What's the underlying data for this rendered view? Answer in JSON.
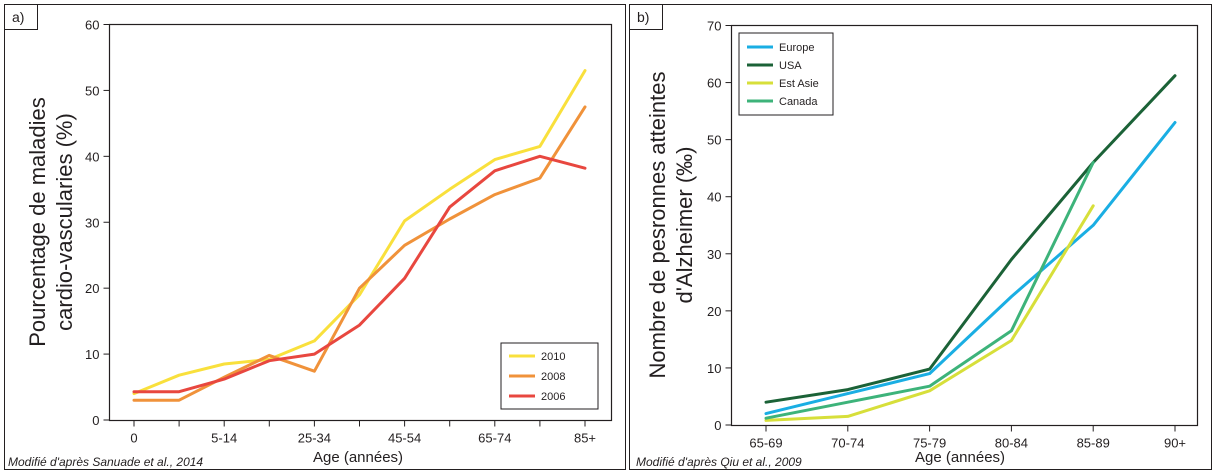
{
  "chart_data": [
    {
      "type": "line",
      "panel_label": "a)",
      "categories": [
        "0",
        "",
        "5-14",
        "",
        "25-34",
        "",
        "45-54",
        "",
        "65-74",
        "",
        "85+"
      ],
      "series": [
        {
          "name": "2010",
          "color": "#f9e03c",
          "values": [
            4.0,
            6.8,
            8.5,
            9.2,
            12.0,
            19.0,
            30.2,
            35.0,
            39.5,
            41.5,
            53.0
          ]
        },
        {
          "name": "2008",
          "color": "#f0923a",
          "values": [
            3.0,
            3.0,
            6.5,
            9.8,
            7.4,
            20.0,
            26.5,
            30.5,
            34.2,
            36.7,
            47.5
          ]
        },
        {
          "name": "2006",
          "color": "#e8473f",
          "values": [
            4.3,
            4.3,
            6.2,
            9.0,
            10.0,
            14.4,
            21.5,
            32.3,
            37.8,
            40.0,
            38.2
          ]
        }
      ],
      "ylim": [
        0,
        60
      ],
      "yticks": [
        "0",
        "10",
        "20",
        "30",
        "40",
        "50",
        "60"
      ],
      "xlabel": "Age (années)",
      "ylabel": [
        "Pourcentage de maladies",
        "cardio-vascularies (%)"
      ],
      "legend_position": "bottom-right",
      "source_note": "Modifié d'après Sanuade et al., 2014"
    },
    {
      "type": "line",
      "panel_label": "b)",
      "categories": [
        "65-69",
        "70-74",
        "75-79",
        "80-84",
        "85-89",
        "90+"
      ],
      "series": [
        {
          "name": "Europe",
          "color": "#1aaee3",
          "values": [
            2.0,
            5.5,
            9.0,
            22.5,
            35.0,
            53.0
          ]
        },
        {
          "name": "USA",
          "color": "#1b6237",
          "values": [
            4.0,
            6.2,
            9.8,
            29.0,
            46.0,
            61.2
          ]
        },
        {
          "name": "Est Asie",
          "color": "#d7df3a",
          "values": [
            0.8,
            1.5,
            6.0,
            14.8,
            38.4,
            null
          ]
        },
        {
          "name": "Canada",
          "color": "#3db37a",
          "values": [
            1.2,
            4.0,
            6.8,
            16.5,
            46.0,
            null
          ]
        }
      ],
      "ylim": [
        0,
        70
      ],
      "yticks": [
        "0",
        "10",
        "20",
        "30",
        "40",
        "50",
        "60",
        "70"
      ],
      "xlabel": "Age (années)",
      "ylabel": [
        "Nombre de pesronnes atteintes",
        "d'Alzheimer (‰)"
      ],
      "legend_position": "top-left",
      "source_note": "Modifié d'après Qiu et al., 2009"
    }
  ]
}
